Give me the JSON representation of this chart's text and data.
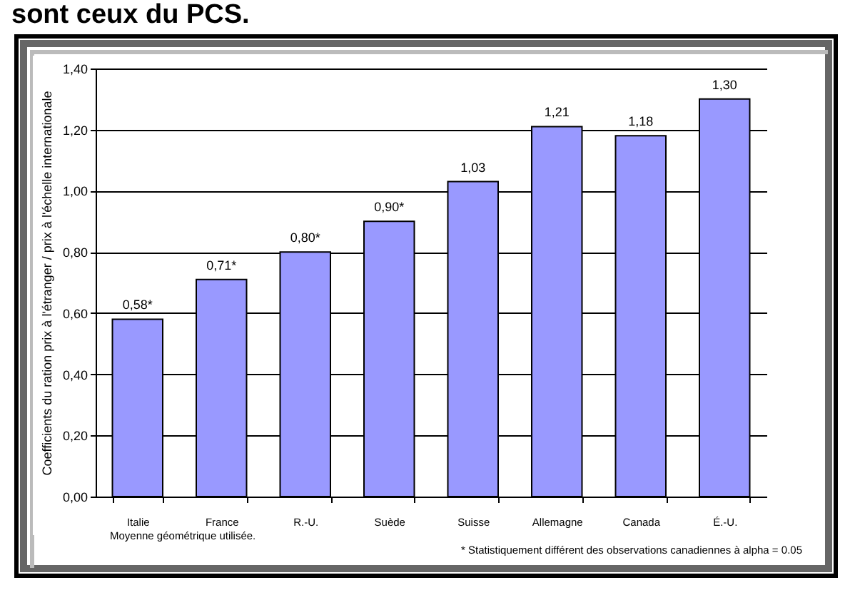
{
  "chart_data": {
    "type": "bar",
    "title": "sont ceux du PCS.",
    "ylabel": "Coefficients du ration prix à l'étranger / prix à l'échelle internationale",
    "categories": [
      "Italie",
      "France",
      "R.-U.",
      "Suède",
      "Suisse",
      "Allemagne",
      "Canada",
      "É.-U."
    ],
    "values": [
      0.58,
      0.71,
      0.8,
      0.9,
      1.03,
      1.21,
      1.18,
      1.3
    ],
    "value_labels": [
      "0,58*",
      "0,71*",
      "0,80*",
      "0,90*",
      "1,03",
      "1,21",
      "1,18",
      "1,30"
    ],
    "color": "#9999ff",
    "ylim": [
      0,
      1.4
    ],
    "yticks": [
      {
        "value": 0,
        "label": "0,00"
      },
      {
        "value": 0.2,
        "label": "0,20"
      },
      {
        "value": 0.4,
        "label": "0,40"
      },
      {
        "value": 0.6,
        "label": "0,60"
      },
      {
        "value": 0.8,
        "label": "0,80"
      },
      {
        "value": 1.0,
        "label": "1,00"
      },
      {
        "value": 1.2,
        "label": "1,20"
      },
      {
        "value": 1.4,
        "label": "1,40"
      }
    ],
    "grid": "y",
    "annotations": [
      "Moyenne géométrique utilisée.",
      "* Statistiquement différent des observations canadiennes à alpha = 0.05"
    ]
  }
}
